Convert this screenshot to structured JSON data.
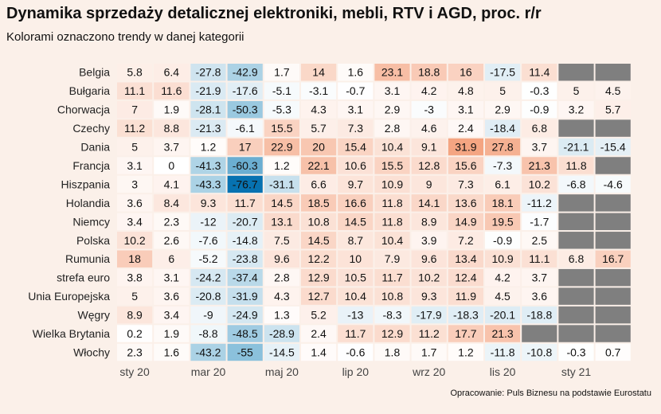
{
  "title": "Dynamika sprzedaży detalicznej elektroniki, mebli, RTV i AGD, proc. r/r",
  "subtitle": "Kolorami oznaczono trendy w danej kategorii",
  "source": "Opracowanie: Puls Biznesu na podstawie Eurostatu",
  "colors": {
    "background": "#fbf0e9",
    "cell_white": "#ffffff",
    "positive": "#f4a582",
    "negative_light": "#d1e5f0",
    "negative_mid": "#92c5de",
    "negative_dark": "#0571b0",
    "missing": "#7f7f7f"
  },
  "chart_data": {
    "type": "heatmap",
    "title": "Dynamika sprzedaży detalicznej elektroniki, mebli, RTV i AGD, proc. r/r",
    "x_tick_labels": [
      "sty 20",
      "mar 20",
      "maj 20",
      "lip 20",
      "wrz 20",
      "lis 20",
      "sty 21"
    ],
    "x_tick_column_index": [
      0,
      2,
      4,
      6,
      8,
      10,
      12
    ],
    "column_count": 14,
    "rows": [
      {
        "name": "Belgia",
        "values": [
          5.8,
          6.4,
          -27.8,
          -42.9,
          1.7,
          14,
          1.6,
          23.1,
          18.8,
          16,
          -17.5,
          11.4,
          null,
          null
        ]
      },
      {
        "name": "Bułgaria",
        "values": [
          11.1,
          11.6,
          -21.9,
          -17.6,
          -5.1,
          -3.1,
          -0.7,
          3.1,
          4.2,
          4.8,
          5,
          -0.3,
          5,
          4.5
        ]
      },
      {
        "name": "Chorwacja",
        "values": [
          7,
          1.9,
          -28.1,
          -50.3,
          -5.3,
          4.3,
          3.1,
          2.9,
          -3,
          3.1,
          2.9,
          -0.9,
          3.2,
          5.7
        ]
      },
      {
        "name": "Czechy",
        "values": [
          11.2,
          8.8,
          -21.3,
          -6.1,
          15.5,
          5.7,
          7.3,
          2.8,
          4.6,
          2.4,
          -18.4,
          6.8,
          null,
          null
        ]
      },
      {
        "name": "Dania",
        "values": [
          5,
          3.7,
          1.2,
          17,
          22.9,
          20,
          15.4,
          10.4,
          9.1,
          31.9,
          27.8,
          3.7,
          -21.1,
          -15.4
        ]
      },
      {
        "name": "Francja",
        "values": [
          3.1,
          0,
          -41.3,
          -60.3,
          1.2,
          22.1,
          10.6,
          15.5,
          12.8,
          15.6,
          -7.3,
          21.3,
          11.8,
          null
        ]
      },
      {
        "name": "Hiszpania",
        "values": [
          3,
          4.1,
          -43.3,
          -76.7,
          -31.1,
          6.6,
          9.7,
          10.9,
          9,
          7.3,
          6.1,
          10.2,
          -6.8,
          -4.6
        ]
      },
      {
        "name": "Holandia",
        "values": [
          3.6,
          8.4,
          9.3,
          11.7,
          14.5,
          18.5,
          16.6,
          11.8,
          14.1,
          13.6,
          18.1,
          -11.2,
          null,
          null
        ]
      },
      {
        "name": "Niemcy",
        "values": [
          3.4,
          2.3,
          -12,
          -20.7,
          13.1,
          10.8,
          14.5,
          11.8,
          8.9,
          14.9,
          19.5,
          -1.7,
          null,
          null
        ]
      },
      {
        "name": "Polska",
        "values": [
          10.2,
          2.6,
          -7.6,
          -14.8,
          7.5,
          14.5,
          8.7,
          10.4,
          3.9,
          7.2,
          -0.9,
          2.5,
          null,
          null
        ]
      },
      {
        "name": "Rumunia",
        "values": [
          18,
          6,
          -5.2,
          -23.8,
          9.6,
          12.2,
          10,
          7.9,
          9.6,
          13.4,
          10.9,
          11.1,
          6.8,
          16.7
        ]
      },
      {
        "name": "strefa euro",
        "values": [
          3.8,
          3.1,
          -24.2,
          -37.4,
          2.8,
          12.9,
          10.5,
          11.7,
          10.2,
          12.4,
          4.2,
          3.7,
          null,
          null
        ]
      },
      {
        "name": "Unia Europejska",
        "values": [
          5,
          3.6,
          -20.8,
          -31.9,
          4.3,
          12.7,
          10.4,
          10.8,
          9.3,
          11.9,
          4.5,
          3.6,
          null,
          null
        ]
      },
      {
        "name": "Węgry",
        "values": [
          8.9,
          3.4,
          -9,
          -24.9,
          1.3,
          5.2,
          -13,
          -8.3,
          -17.9,
          -18.3,
          -20.1,
          -18.8,
          null,
          null
        ]
      },
      {
        "name": "Wielka Brytania",
        "values": [
          0.2,
          1.9,
          -8.8,
          -48.5,
          -28.9,
          2.4,
          11.7,
          12.9,
          11.2,
          17.7,
          21.3,
          null,
          null,
          null
        ]
      },
      {
        "name": "Włochy",
        "values": [
          2.3,
          1.6,
          -43.2,
          -55,
          -14.5,
          1.4,
          -0.6,
          1.8,
          1.7,
          1.2,
          -11.8,
          -10.8,
          -0.3,
          0.7
        ]
      }
    ],
    "missing_color": "#7f7f7f",
    "grid": false,
    "legend": "none"
  }
}
